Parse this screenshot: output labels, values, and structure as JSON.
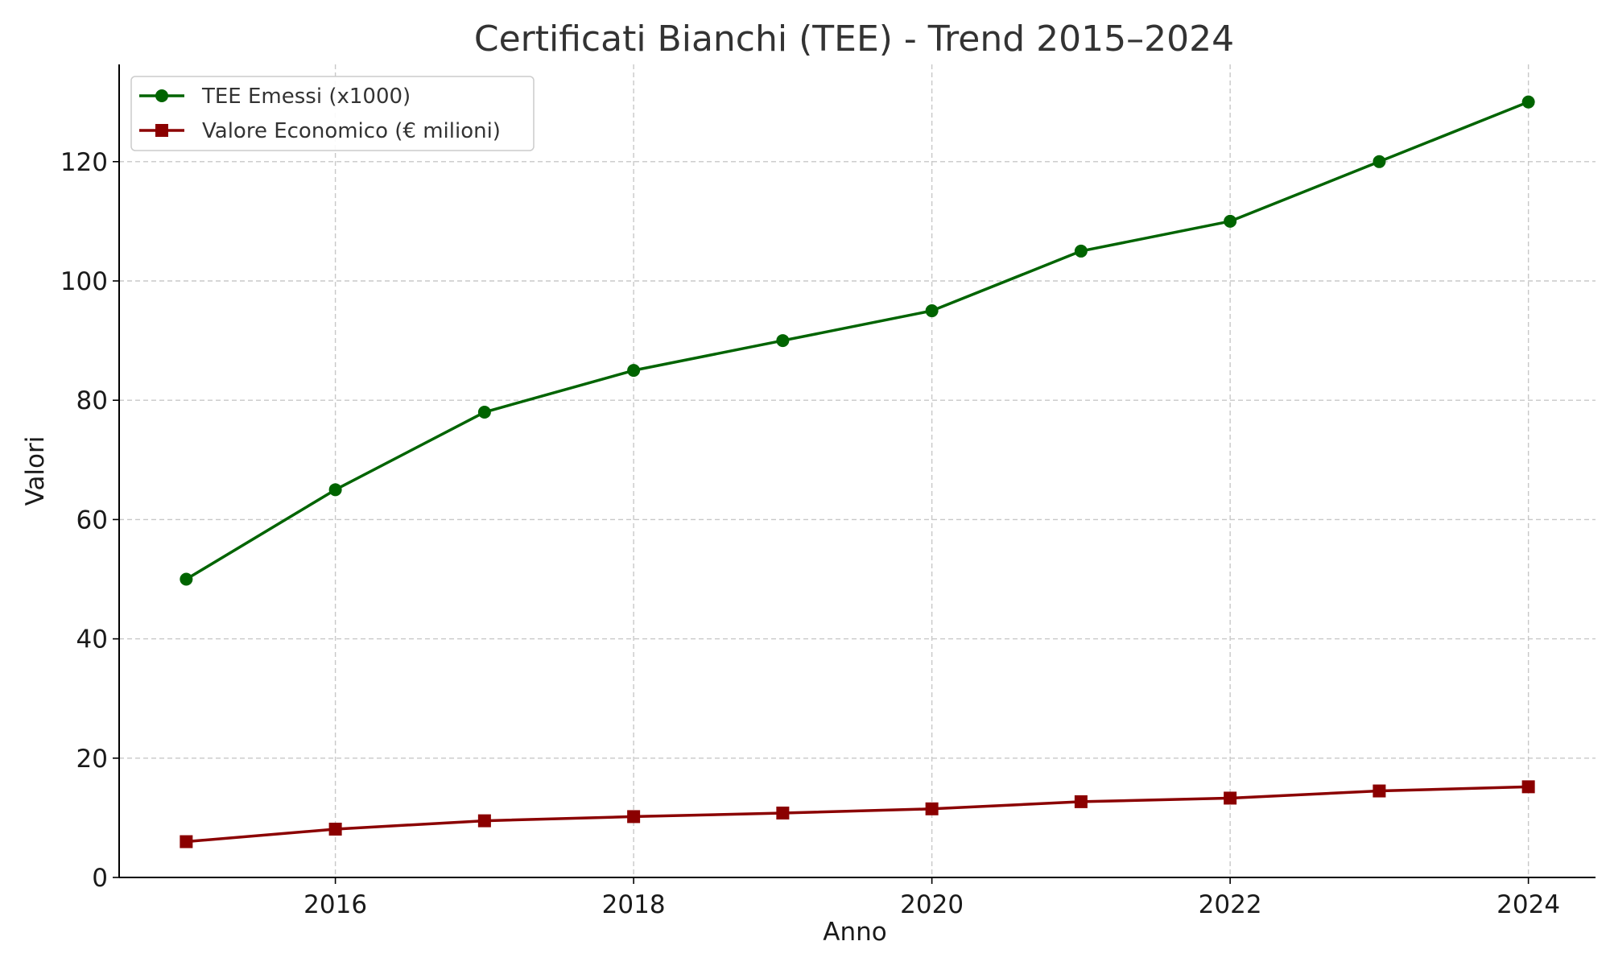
{
  "chart_data": {
    "type": "line",
    "title": "Certificati Bianchi (TEE) - Trend 2015–2024",
    "xlabel": "Anno",
    "ylabel": "Valori",
    "x": [
      2015,
      2016,
      2017,
      2018,
      2019,
      2020,
      2021,
      2022,
      2023,
      2024
    ],
    "xlim": [
      2014.55,
      2024.45
    ],
    "ylim": [
      0,
      136.3
    ],
    "x_ticks": [
      "2016",
      "2018",
      "2020",
      "2022",
      "2024"
    ],
    "y_ticks": [
      "0",
      "20",
      "40",
      "60",
      "80",
      "100",
      "120"
    ],
    "grid": true,
    "legend_position": "top-left",
    "series": [
      {
        "name": "TEE Emessi (x1000)",
        "color": "#006400",
        "marker": "circle",
        "values": [
          50,
          65,
          78,
          85,
          90,
          95,
          105,
          110,
          120,
          130
        ]
      },
      {
        "name": "Valore Economico (€ milioni)",
        "color": "#8b0000",
        "marker": "square",
        "values": [
          6.0,
          8.1,
          9.5,
          10.2,
          10.8,
          11.5,
          12.7,
          13.3,
          14.5,
          15.2
        ]
      }
    ]
  }
}
